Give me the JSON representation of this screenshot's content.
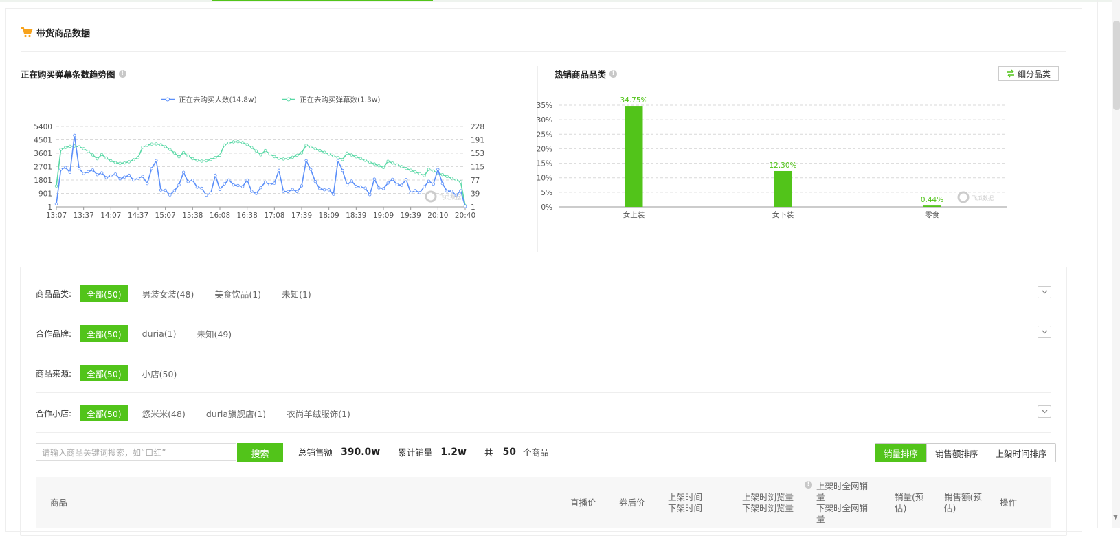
{
  "section": {
    "title": "带货商品数据"
  },
  "trend": {
    "title": "正在购买弹幕条数趋势图",
    "chart_data": {
      "type": "line",
      "series": [
        {
          "name": "正在去购买人数(14.8w)",
          "color": "#5b8ff9"
        },
        {
          "name": "正在去购买弹幕数(1.3w)",
          "color": "#5ad8a6"
        }
      ],
      "x_ticks": [
        "13:07",
        "13:37",
        "14:07",
        "14:37",
        "15:07",
        "15:38",
        "16:08",
        "16:38",
        "17:08",
        "17:39",
        "18:09",
        "18:39",
        "19:09",
        "19:39",
        "20:10",
        "20:40"
      ],
      "y_left_ticks": [
        "5400",
        "4501",
        "3601",
        "2701",
        "1801",
        "901",
        "1"
      ],
      "y_right_ticks": [
        "228",
        "191",
        "153",
        "115",
        "77",
        "39",
        "1"
      ],
      "y_left_range": [
        1,
        5400
      ],
      "y_right_range": [
        1,
        228
      ],
      "grid": "horizontal dashed",
      "legend": "top-center"
    },
    "watermark": "飞瓜数据"
  },
  "hot": {
    "title": "热销商品品类",
    "sub_button": "细分品类",
    "chart_data": {
      "type": "bar",
      "categories": [
        "女上装",
        "女下装",
        "零食"
      ],
      "values": [
        34.75,
        12.3,
        0.44
      ],
      "labels": [
        "34.75%",
        "12.30%",
        "0.44%"
      ],
      "y_ticks": [
        "35%",
        "30%",
        "25%",
        "20%",
        "15%",
        "10%",
        "5%",
        "0%"
      ],
      "ylim": [
        0,
        35
      ],
      "color": "#52c41a",
      "grid": "horizontal dashed"
    },
    "watermark": "飞瓜数据"
  },
  "filters": [
    {
      "label": "商品品类:",
      "chips": [
        "全部(50)",
        "男装女装(48)",
        "美食饮品(1)",
        "未知(1)"
      ]
    },
    {
      "label": "合作品牌:",
      "chips": [
        "全部(50)",
        "duria(1)",
        "未知(49)"
      ]
    },
    {
      "label": "商品来源:",
      "chips": [
        "全部(50)",
        "小店(50)"
      ]
    },
    {
      "label": "合作小店:",
      "chips": [
        "全部(50)",
        "悠米米(48)",
        "duria旗舰店(1)",
        "衣尚羊绒服饰(1)"
      ]
    }
  ],
  "search": {
    "placeholder": "请输入商品关键词搜索，如“口红”",
    "button": "搜索"
  },
  "stats": {
    "sales_label": "总销售额",
    "sales_value": "390.0w",
    "volume_label": "累计销量",
    "volume_value": "1.2w",
    "count_prefix": "共",
    "count_value": "50",
    "count_suffix": "个商品"
  },
  "sort": [
    "销量排序",
    "销售额排序",
    "上架时间排序"
  ],
  "table_header": {
    "product": "商品",
    "live_price": "直播价",
    "coupon_price": "券后价",
    "shelf_time": "上架时间",
    "off_time": "下架时间",
    "shelf_views": "上架时浏览量",
    "off_views": "下架时浏览量",
    "shelf_sales_1": "上架时全网销",
    "shelf_sales_2": "量",
    "off_sales_1": "下架时全网销",
    "off_sales_2": "量",
    "est_volume_1": "销量(预",
    "est_volume_2": "估)",
    "est_amount_1": "销售额(预",
    "est_amount_2": "估)",
    "action": "操作"
  }
}
